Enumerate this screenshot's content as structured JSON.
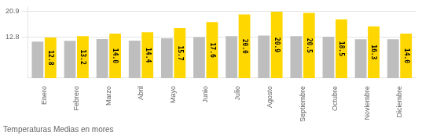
{
  "chart_data": {
    "type": "bar",
    "title": "Temperaturas Medias en mores",
    "categories": [
      "Enero",
      "Febrero",
      "Marzo",
      "Abril",
      "Mayo",
      "Junio",
      "Julio",
      "Agosto",
      "Septiembre",
      "Octubre",
      "Noviembre",
      "Diciembre"
    ],
    "series": [
      {
        "color": "#BEBEBE",
        "values": [
          11.5,
          11.7,
          12.3,
          11.8,
          12.5,
          12.9,
          13.2,
          13.4,
          13.2,
          13.0,
          12.2,
          12.2
        ]
      },
      {
        "color": "#FFD700",
        "values": [
          12.8,
          13.2,
          14.0,
          14.4,
          15.7,
          17.6,
          20.0,
          20.9,
          20.5,
          18.5,
          16.3,
          14.0
        ],
        "data_labels": true,
        "value_labels": [
          "12.8",
          "13.2",
          "14.0",
          "14.4",
          "15.7",
          "17.6",
          "20.0",
          "20.9",
          "20.5",
          "18.5",
          "16.3",
          "14.0"
        ]
      }
    ],
    "ylim": [
      0,
      22.5
    ],
    "yticks": [
      12.8,
      20.9
    ],
    "grid": true
  }
}
